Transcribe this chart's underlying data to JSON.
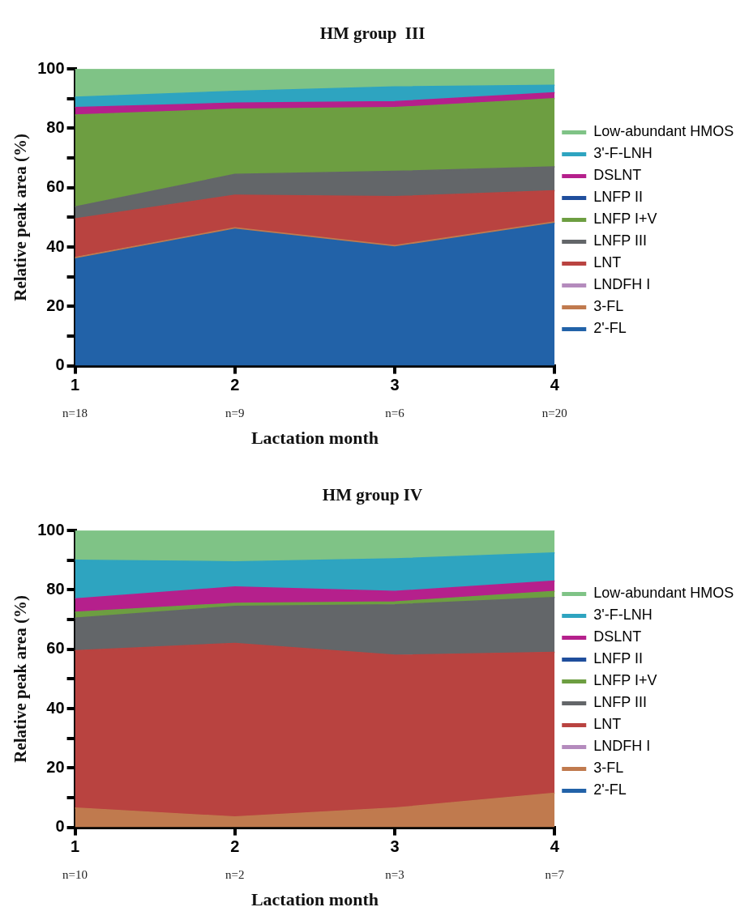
{
  "chart_data": [
    {
      "type": "area",
      "title": "HM group  III",
      "xlabel": "Lactation month",
      "ylabel": "Relative peak area (%)",
      "categories": [
        "1",
        "2",
        "3",
        "4"
      ],
      "stacked": true,
      "legend": "right",
      "grid": false,
      "ylim": [
        0,
        100
      ],
      "yticks": [
        0,
        {
          "value": 10,
          "label": null
        },
        20,
        {
          "value": 30,
          "label": null
        },
        40,
        {
          "value": 50,
          "label": null
        },
        60,
        {
          "value": 70,
          "label": null
        },
        80,
        {
          "value": 90,
          "label": null
        },
        100
      ],
      "series": [
        {
          "name": "2'-FL",
          "color": "#2262a8",
          "values": [
            36,
            46,
            40,
            48
          ]
        },
        {
          "name": "3-FL",
          "color": "#c07a4e",
          "values": [
            0.5,
            0.5,
            0.5,
            0.5
          ]
        },
        {
          "name": "LNDFH I",
          "color": "#b48bbd",
          "values": [
            null,
            null,
            null,
            null
          ]
        },
        {
          "name": "LNT",
          "color": "#b94340",
          "values": [
            13,
            11,
            16.5,
            10.5
          ]
        },
        {
          "name": "LNFP III",
          "color": "#636669",
          "values": [
            4,
            7,
            8.5,
            8
          ]
        },
        {
          "name": "LNFP I+V",
          "color": "#6d9e41",
          "values": [
            31,
            22,
            21.5,
            23
          ]
        },
        {
          "name": "LNFP II",
          "color": "#1f4e9c",
          "values": [
            null,
            null,
            null,
            null
          ]
        },
        {
          "name": "DSLNT",
          "color": "#b5208c",
          "values": [
            2.5,
            2,
            2,
            2
          ]
        },
        {
          "name": "3'-F-LNH",
          "color": "#2ea4c0",
          "values": [
            3.5,
            4,
            5,
            2.5
          ]
        },
        {
          "name": "Low-abundant HMOS",
          "color": "#7fc386",
          "values": [
            9.5,
            7.5,
            6,
            5.5
          ]
        }
      ],
      "annotations": [
        "n=18",
        "n=9",
        "n=6",
        "n=20"
      ]
    },
    {
      "type": "area",
      "title": "HM group IV",
      "xlabel": "Lactation month",
      "ylabel": "Relative peak area (%)",
      "categories": [
        "1",
        "2",
        "3",
        "4"
      ],
      "stacked": true,
      "legend": "right",
      "grid": false,
      "ylim": [
        0,
        100
      ],
      "yticks": [
        0,
        {
          "value": 10,
          "label": null
        },
        20,
        {
          "value": 30,
          "label": null
        },
        40,
        {
          "value": 50,
          "label": null
        },
        60,
        {
          "value": 70,
          "label": null
        },
        80,
        {
          "value": 90,
          "label": null
        },
        100
      ],
      "series": [
        {
          "name": "2'-FL",
          "color": "#2262a8",
          "values": [
            null,
            null,
            null,
            null
          ]
        },
        {
          "name": "3-FL",
          "color": "#c07a4e",
          "values": [
            6.5,
            3.5,
            6.5,
            11.5
          ]
        },
        {
          "name": "LNDFH I",
          "color": "#b48bbd",
          "values": [
            null,
            null,
            null,
            null
          ]
        },
        {
          "name": "LNT",
          "color": "#b94340",
          "values": [
            53,
            58.5,
            51.5,
            47.5
          ]
        },
        {
          "name": "LNFP III",
          "color": "#636669",
          "values": [
            11,
            12.5,
            17,
            18.5
          ]
        },
        {
          "name": "LNFP I+V",
          "color": "#6d9e41",
          "values": [
            2,
            1,
            1,
            2
          ]
        },
        {
          "name": "LNFP II",
          "color": "#1f4e9c",
          "values": [
            null,
            null,
            null,
            null
          ]
        },
        {
          "name": "DSLNT",
          "color": "#b5208c",
          "values": [
            4.5,
            5.5,
            3.5,
            3.5
          ]
        },
        {
          "name": "3'-F-LNH",
          "color": "#2ea4c0",
          "values": [
            13,
            8.5,
            11,
            9.5
          ]
        },
        {
          "name": "Low-abundant HMOS",
          "color": "#7fc386",
          "values": [
            10,
            10.5,
            9.5,
            7.5
          ]
        }
      ],
      "annotations": [
        "n=10",
        "n=2",
        "n=3",
        "n=7"
      ]
    }
  ]
}
